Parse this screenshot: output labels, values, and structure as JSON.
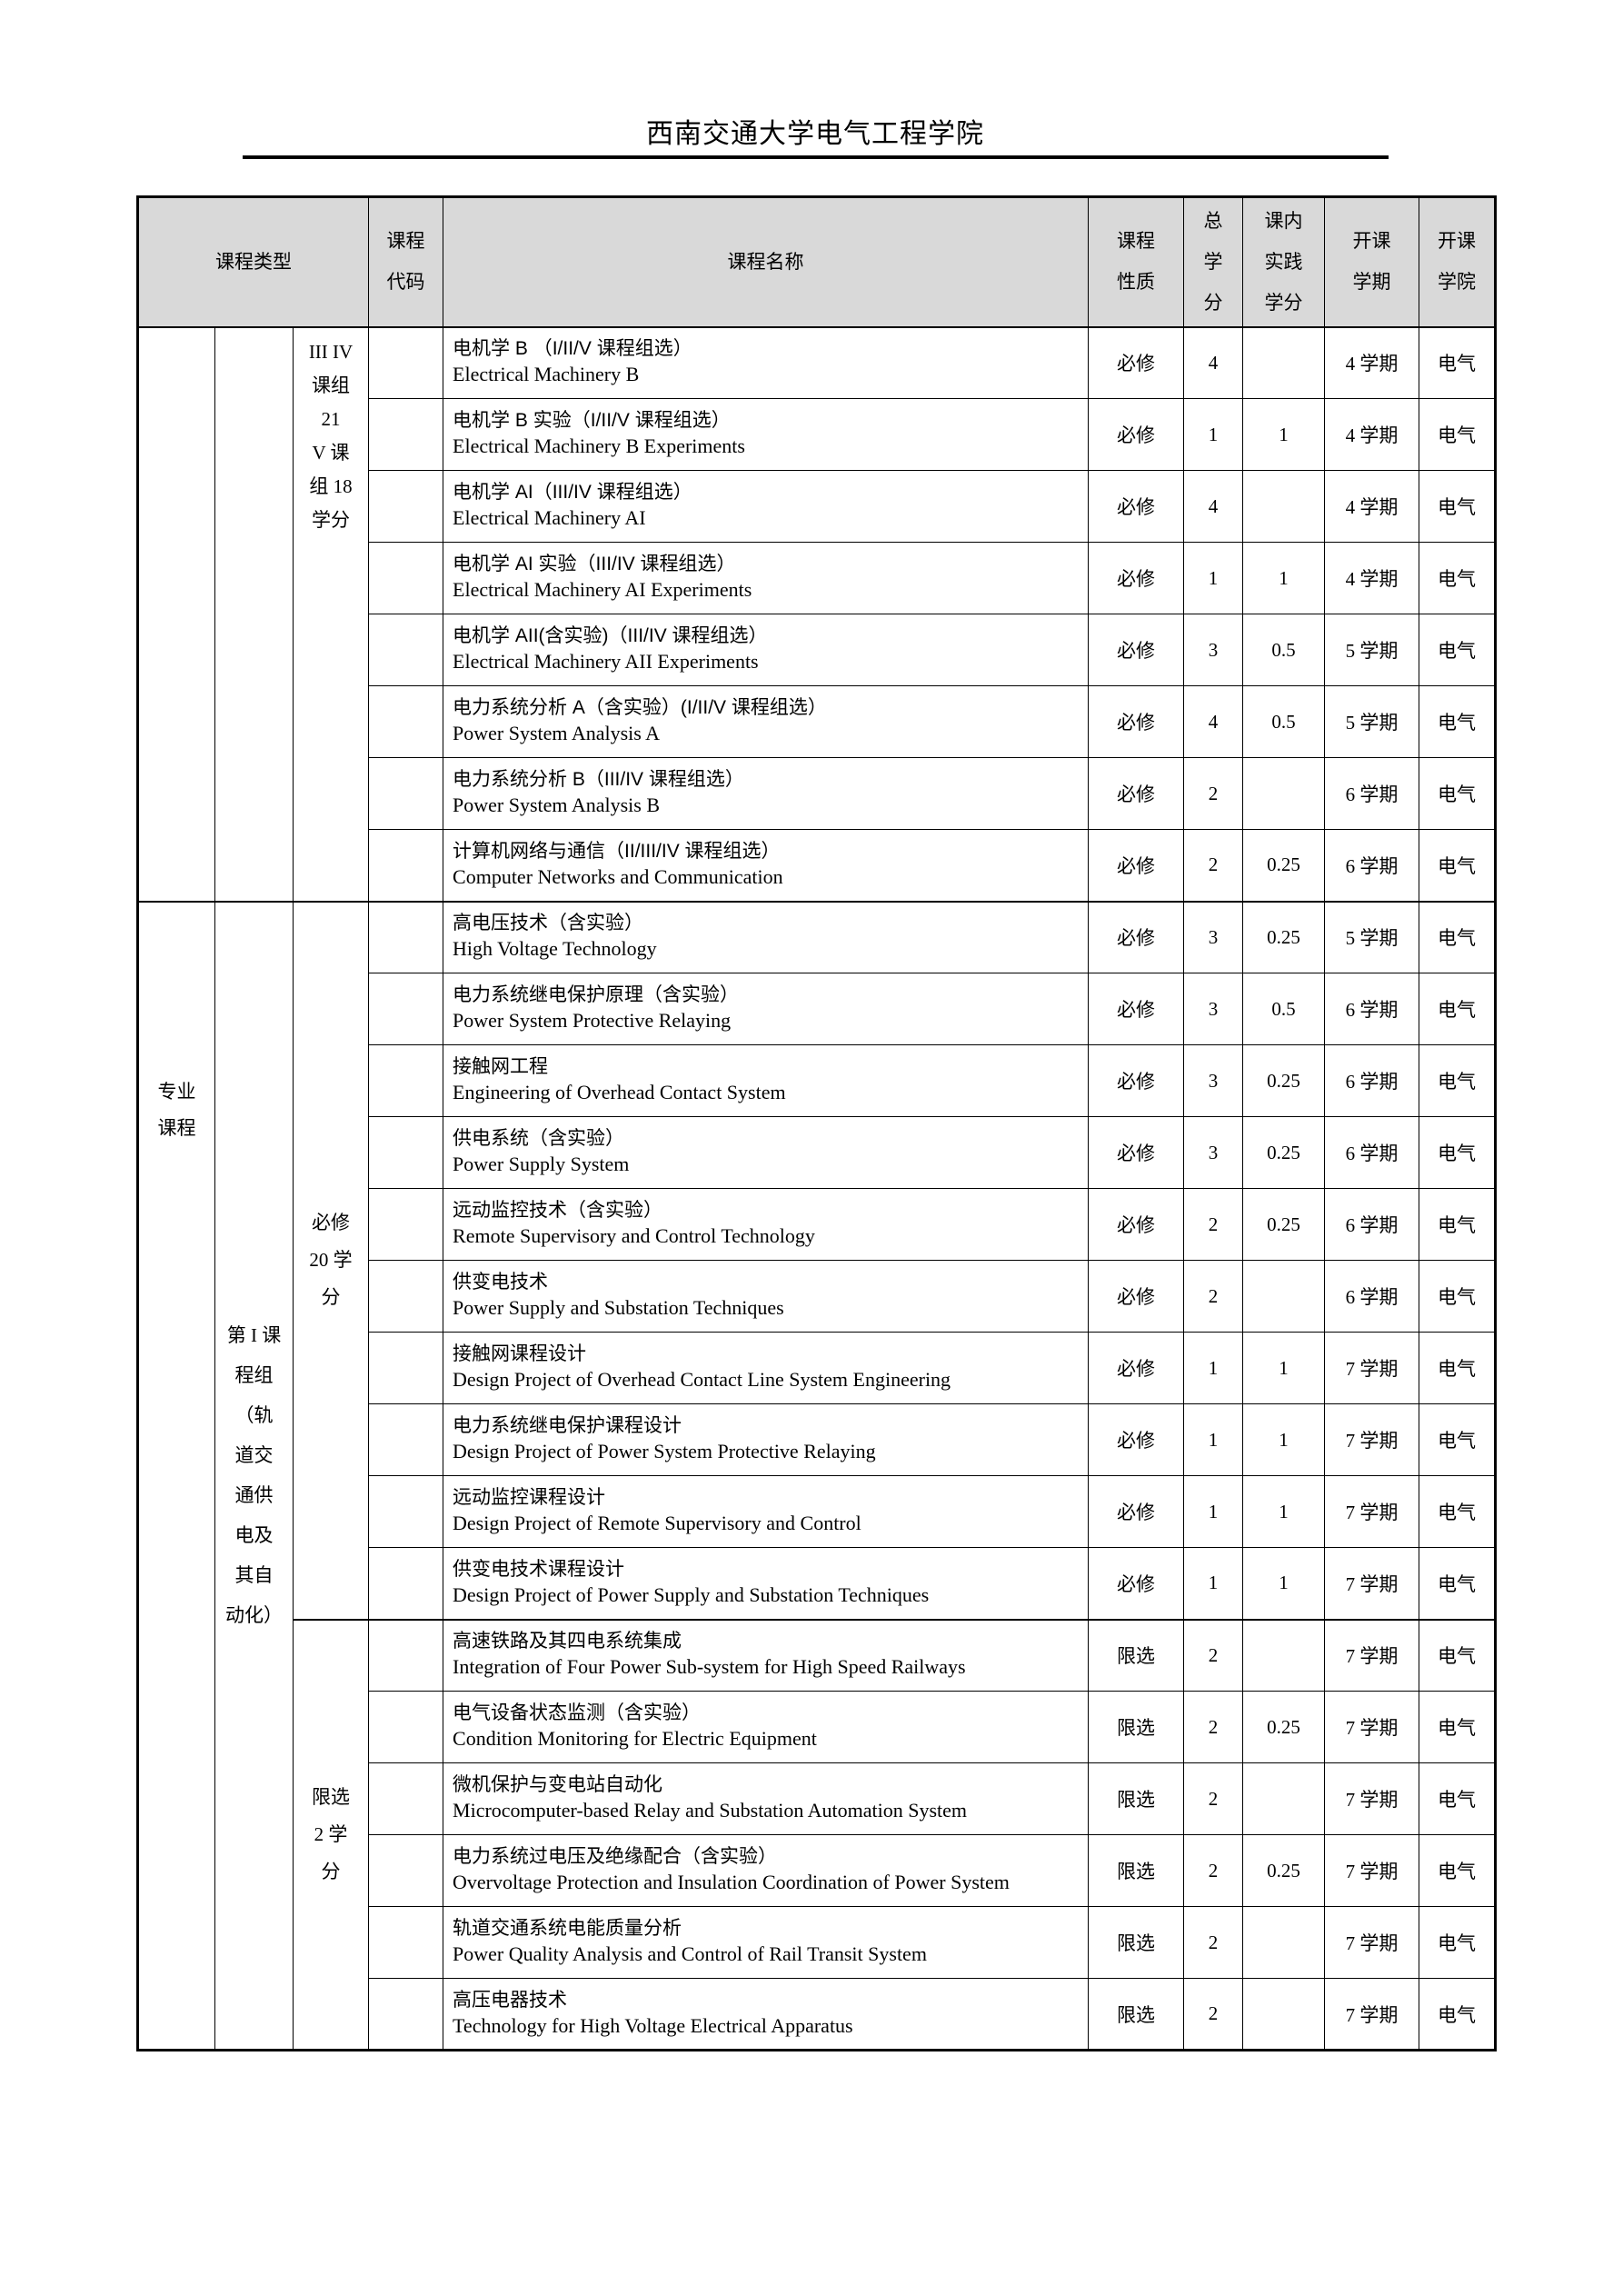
{
  "page": {
    "title": "西南交通大学电气工程学院"
  },
  "colors": {
    "header_bg": "#d9d9d9",
    "border": "#000000",
    "text": "#000000"
  },
  "table": {
    "headers": {
      "course_type": "课程类型",
      "course_code": "课程\n代码",
      "course_name": "课程名称",
      "course_nature": "课程\n性质",
      "total_credits": "总\n学\n分",
      "practice_credits": "课内\n实践\n学分",
      "semester": "开课\n学期",
      "college": "开课\n学院"
    },
    "groups": {
      "category": "专业\n课程",
      "course_group": "第 I 课\n程组\n（轨\n道交\n通供\n电及\n其自\n动化）",
      "subgroup_top": "III IV\n课组\n21\nV 课\n组 18\n学分",
      "subgroup_required": "必修\n20 学\n分",
      "subgroup_elective": "限选\n2 学\n分"
    },
    "rows": [
      {
        "zh": "电机学 B （I/II/V 课程组选）",
        "en": "Electrical Machinery B",
        "nature": "必修",
        "credits": "4",
        "practice": "",
        "semester": "4 学期",
        "college": "电气"
      },
      {
        "zh": "电机学 B 实验（I/II/V 课程组选）",
        "en": "Electrical Machinery B Experiments",
        "nature": "必修",
        "credits": "1",
        "practice": "1",
        "semester": "4 学期",
        "college": "电气"
      },
      {
        "zh": "电机学 AI（III/IV 课程组选）",
        "en": "Electrical Machinery AI",
        "nature": "必修",
        "credits": "4",
        "practice": "",
        "semester": "4 学期",
        "college": "电气"
      },
      {
        "zh": "电机学 AI 实验（III/IV 课程组选）",
        "en": "Electrical Machinery AI Experiments",
        "nature": "必修",
        "credits": "1",
        "practice": "1",
        "semester": "4 学期",
        "college": "电气"
      },
      {
        "zh": "电机学 AII(含实验)（III/IV 课程组选）",
        "en": "Electrical Machinery AII Experiments",
        "nature": "必修",
        "credits": "3",
        "practice": "0.5",
        "semester": "5 学期",
        "college": "电气"
      },
      {
        "zh": "电力系统分析 A（含实验）(I/II/V 课程组选）",
        "en": "Power System Analysis A",
        "nature": "必修",
        "credits": "4",
        "practice": "0.5",
        "semester": "5 学期",
        "college": "电气"
      },
      {
        "zh": "电力系统分析 B（III/IV 课程组选）",
        "en": "Power System Analysis B",
        "nature": "必修",
        "credits": "2",
        "practice": "",
        "semester": "6 学期",
        "college": "电气"
      },
      {
        "zh": "计算机网络与通信（II/III/IV 课程组选）",
        "en": "Computer Networks and Communication",
        "nature": "必修",
        "credits": "2",
        "practice": "0.25",
        "semester": "6 学期",
        "college": "电气"
      },
      {
        "zh": "高电压技术（含实验）",
        "en": "High Voltage Technology",
        "nature": "必修",
        "credits": "3",
        "practice": "0.25",
        "semester": "5 学期",
        "college": "电气"
      },
      {
        "zh": "电力系统继电保护原理（含实验）",
        "en": "Power System Protective Relaying",
        "nature": "必修",
        "credits": "3",
        "practice": "0.5",
        "semester": "6 学期",
        "college": "电气"
      },
      {
        "zh": "接触网工程",
        "en": "Engineering of Overhead Contact System",
        "nature": "必修",
        "credits": "3",
        "practice": "0.25",
        "semester": "6 学期",
        "college": "电气"
      },
      {
        "zh": "供电系统（含实验）",
        "en": "Power Supply System",
        "nature": "必修",
        "credits": "3",
        "practice": "0.25",
        "semester": "6 学期",
        "college": "电气"
      },
      {
        "zh": "远动监控技术（含实验）",
        "en": "Remote Supervisory and Control Technology",
        "nature": "必修",
        "credits": "2",
        "practice": "0.25",
        "semester": "6 学期",
        "college": "电气"
      },
      {
        "zh": "供变电技术",
        "en": "Power Supply and Substation Techniques",
        "nature": "必修",
        "credits": "2",
        "practice": "",
        "semester": "6 学期",
        "college": "电气"
      },
      {
        "zh": "接触网课程设计",
        "en": "Design Project of Overhead Contact Line System Engineering",
        "nature": "必修",
        "credits": "1",
        "practice": "1",
        "semester": "7 学期",
        "college": "电气"
      },
      {
        "zh": "电力系统继电保护课程设计",
        "en": "Design Project of Power System Protective Relaying",
        "nature": "必修",
        "credits": "1",
        "practice": "1",
        "semester": "7 学期",
        "college": "电气"
      },
      {
        "zh": "远动监控课程设计",
        "en": "Design Project of Remote Supervisory and Control",
        "nature": "必修",
        "credits": "1",
        "practice": "1",
        "semester": "7 学期",
        "college": "电气"
      },
      {
        "zh": "供变电技术课程设计",
        "en": "Design Project of Power Supply and Substation Techniques",
        "nature": "必修",
        "credits": "1",
        "practice": "1",
        "semester": "7 学期",
        "college": "电气"
      },
      {
        "zh": "高速铁路及其四电系统集成",
        "en": "Integration of Four Power Sub-system for High Speed Railways",
        "nature": "限选",
        "credits": "2",
        "practice": "",
        "semester": "7 学期",
        "college": "电气"
      },
      {
        "zh": "电气设备状态监测（含实验）",
        "en": "Condition Monitoring for Electric Equipment",
        "nature": "限选",
        "credits": "2",
        "practice": "0.25",
        "semester": "7 学期",
        "college": "电气"
      },
      {
        "zh": "微机保护与变电站自动化",
        "en": "Microcomputer-based Relay and Substation Automation System",
        "nature": "限选",
        "credits": "2",
        "practice": "",
        "semester": "7 学期",
        "college": "电气"
      },
      {
        "zh": "电力系统过电压及绝缘配合（含实验）",
        "en": "Overvoltage Protection and Insulation Coordination of Power System",
        "nature": "限选",
        "credits": "2",
        "practice": "0.25",
        "semester": "7 学期",
        "college": "电气"
      },
      {
        "zh": "轨道交通系统电能质量分析",
        "en": "Power Quality Analysis and Control of Rail Transit System",
        "nature": "限选",
        "credits": "2",
        "practice": "",
        "semester": "7 学期",
        "college": "电气"
      },
      {
        "zh": "高压电器技术",
        "en": "Technology for High Voltage Electrical Apparatus",
        "nature": "限选",
        "credits": "2",
        "practice": "",
        "semester": "7 学期",
        "college": "电气"
      }
    ]
  }
}
